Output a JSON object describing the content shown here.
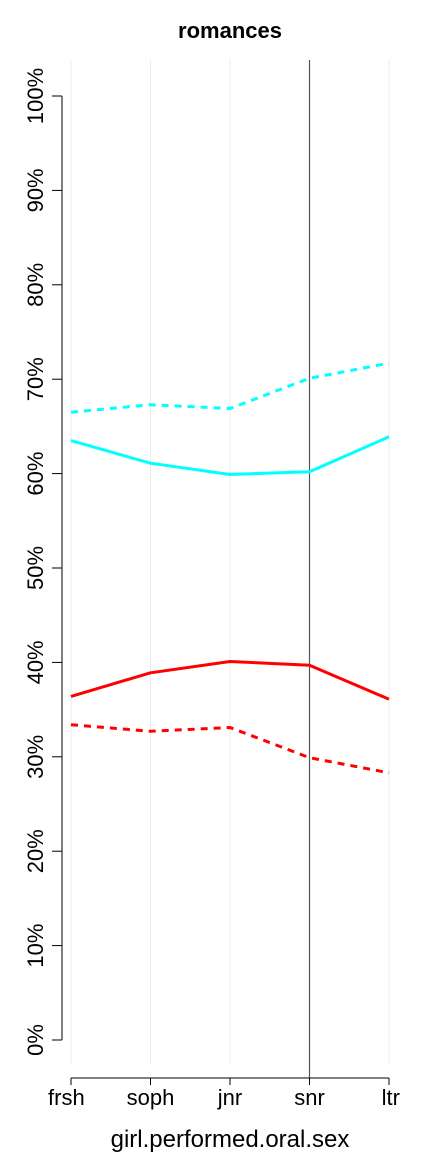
{
  "chart_data": {
    "type": "line",
    "title": "romances",
    "xlabel": "girl.performed.oral.sex",
    "ylabel": "",
    "categories": [
      "frsh",
      "soph",
      "jnr",
      "snr",
      "ltr"
    ],
    "ylim": [
      0,
      100
    ],
    "yticks": [
      0,
      10,
      20,
      30,
      40,
      50,
      60,
      70,
      80,
      90,
      100
    ],
    "ytick_labels": [
      "0%",
      "10%",
      "20%",
      "30%",
      "40%",
      "50%",
      "60%",
      "70%",
      "80%",
      "90%",
      "100%"
    ],
    "reference_line": "snr",
    "grid": true,
    "series": [
      {
        "color": "#00ffff",
        "dash": "dashed",
        "values": [
          66.5,
          67.3,
          66.9,
          70.1,
          71.7
        ]
      },
      {
        "color": "#00ffff",
        "dash": "solid",
        "values": [
          63.5,
          61.1,
          59.9,
          60.2,
          63.9
        ]
      },
      {
        "color": "#ff0000",
        "dash": "solid",
        "values": [
          36.4,
          38.9,
          40.1,
          39.7,
          36.1
        ]
      },
      {
        "color": "#ff0000",
        "dash": "dashed",
        "values": [
          33.4,
          32.7,
          33.1,
          29.9,
          28.3
        ]
      }
    ]
  }
}
